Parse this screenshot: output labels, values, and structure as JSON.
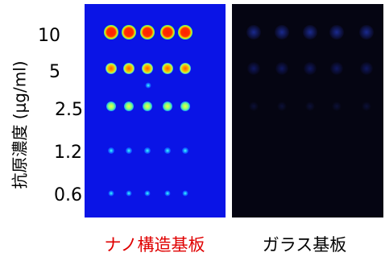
{
  "y_label": "抗原濃度 (μg/ml)",
  "concentrations": [
    "10",
    "5",
    "2.5",
    "1.2",
    "0.6"
  ],
  "panels": [
    {
      "label": "ナノ構造基板"
    },
    {
      "label": "ガラス基板"
    }
  ]
}
